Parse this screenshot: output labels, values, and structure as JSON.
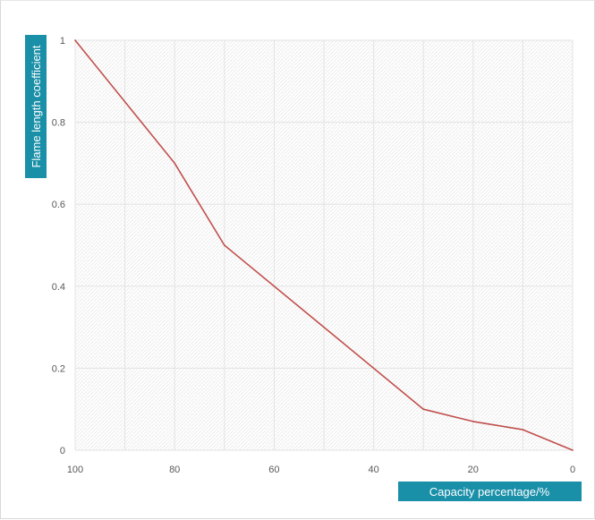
{
  "colors": {
    "line": "#c0504d",
    "label_box": "#1a8fa8",
    "grid": "#e3e3e3",
    "plot_pattern": "#ececec"
  },
  "chart_data": {
    "type": "line",
    "title": "",
    "xlabel": "Capacity percentage/%",
    "ylabel": "Flame length coefficient",
    "x_reversed": true,
    "xlim": [
      100,
      0
    ],
    "ylim": [
      0,
      1
    ],
    "x_ticks": [
      100,
      80,
      60,
      40,
      20,
      0
    ],
    "y_ticks": [
      0,
      0.2,
      0.4,
      0.6,
      0.8,
      1
    ],
    "grid": true,
    "legend": "none",
    "series": [
      {
        "x": [
          100,
          80,
          70,
          30,
          20,
          10,
          0
        ],
        "y": [
          1,
          0.7,
          0.5,
          0.1,
          0.07,
          0.05,
          0
        ]
      }
    ]
  }
}
